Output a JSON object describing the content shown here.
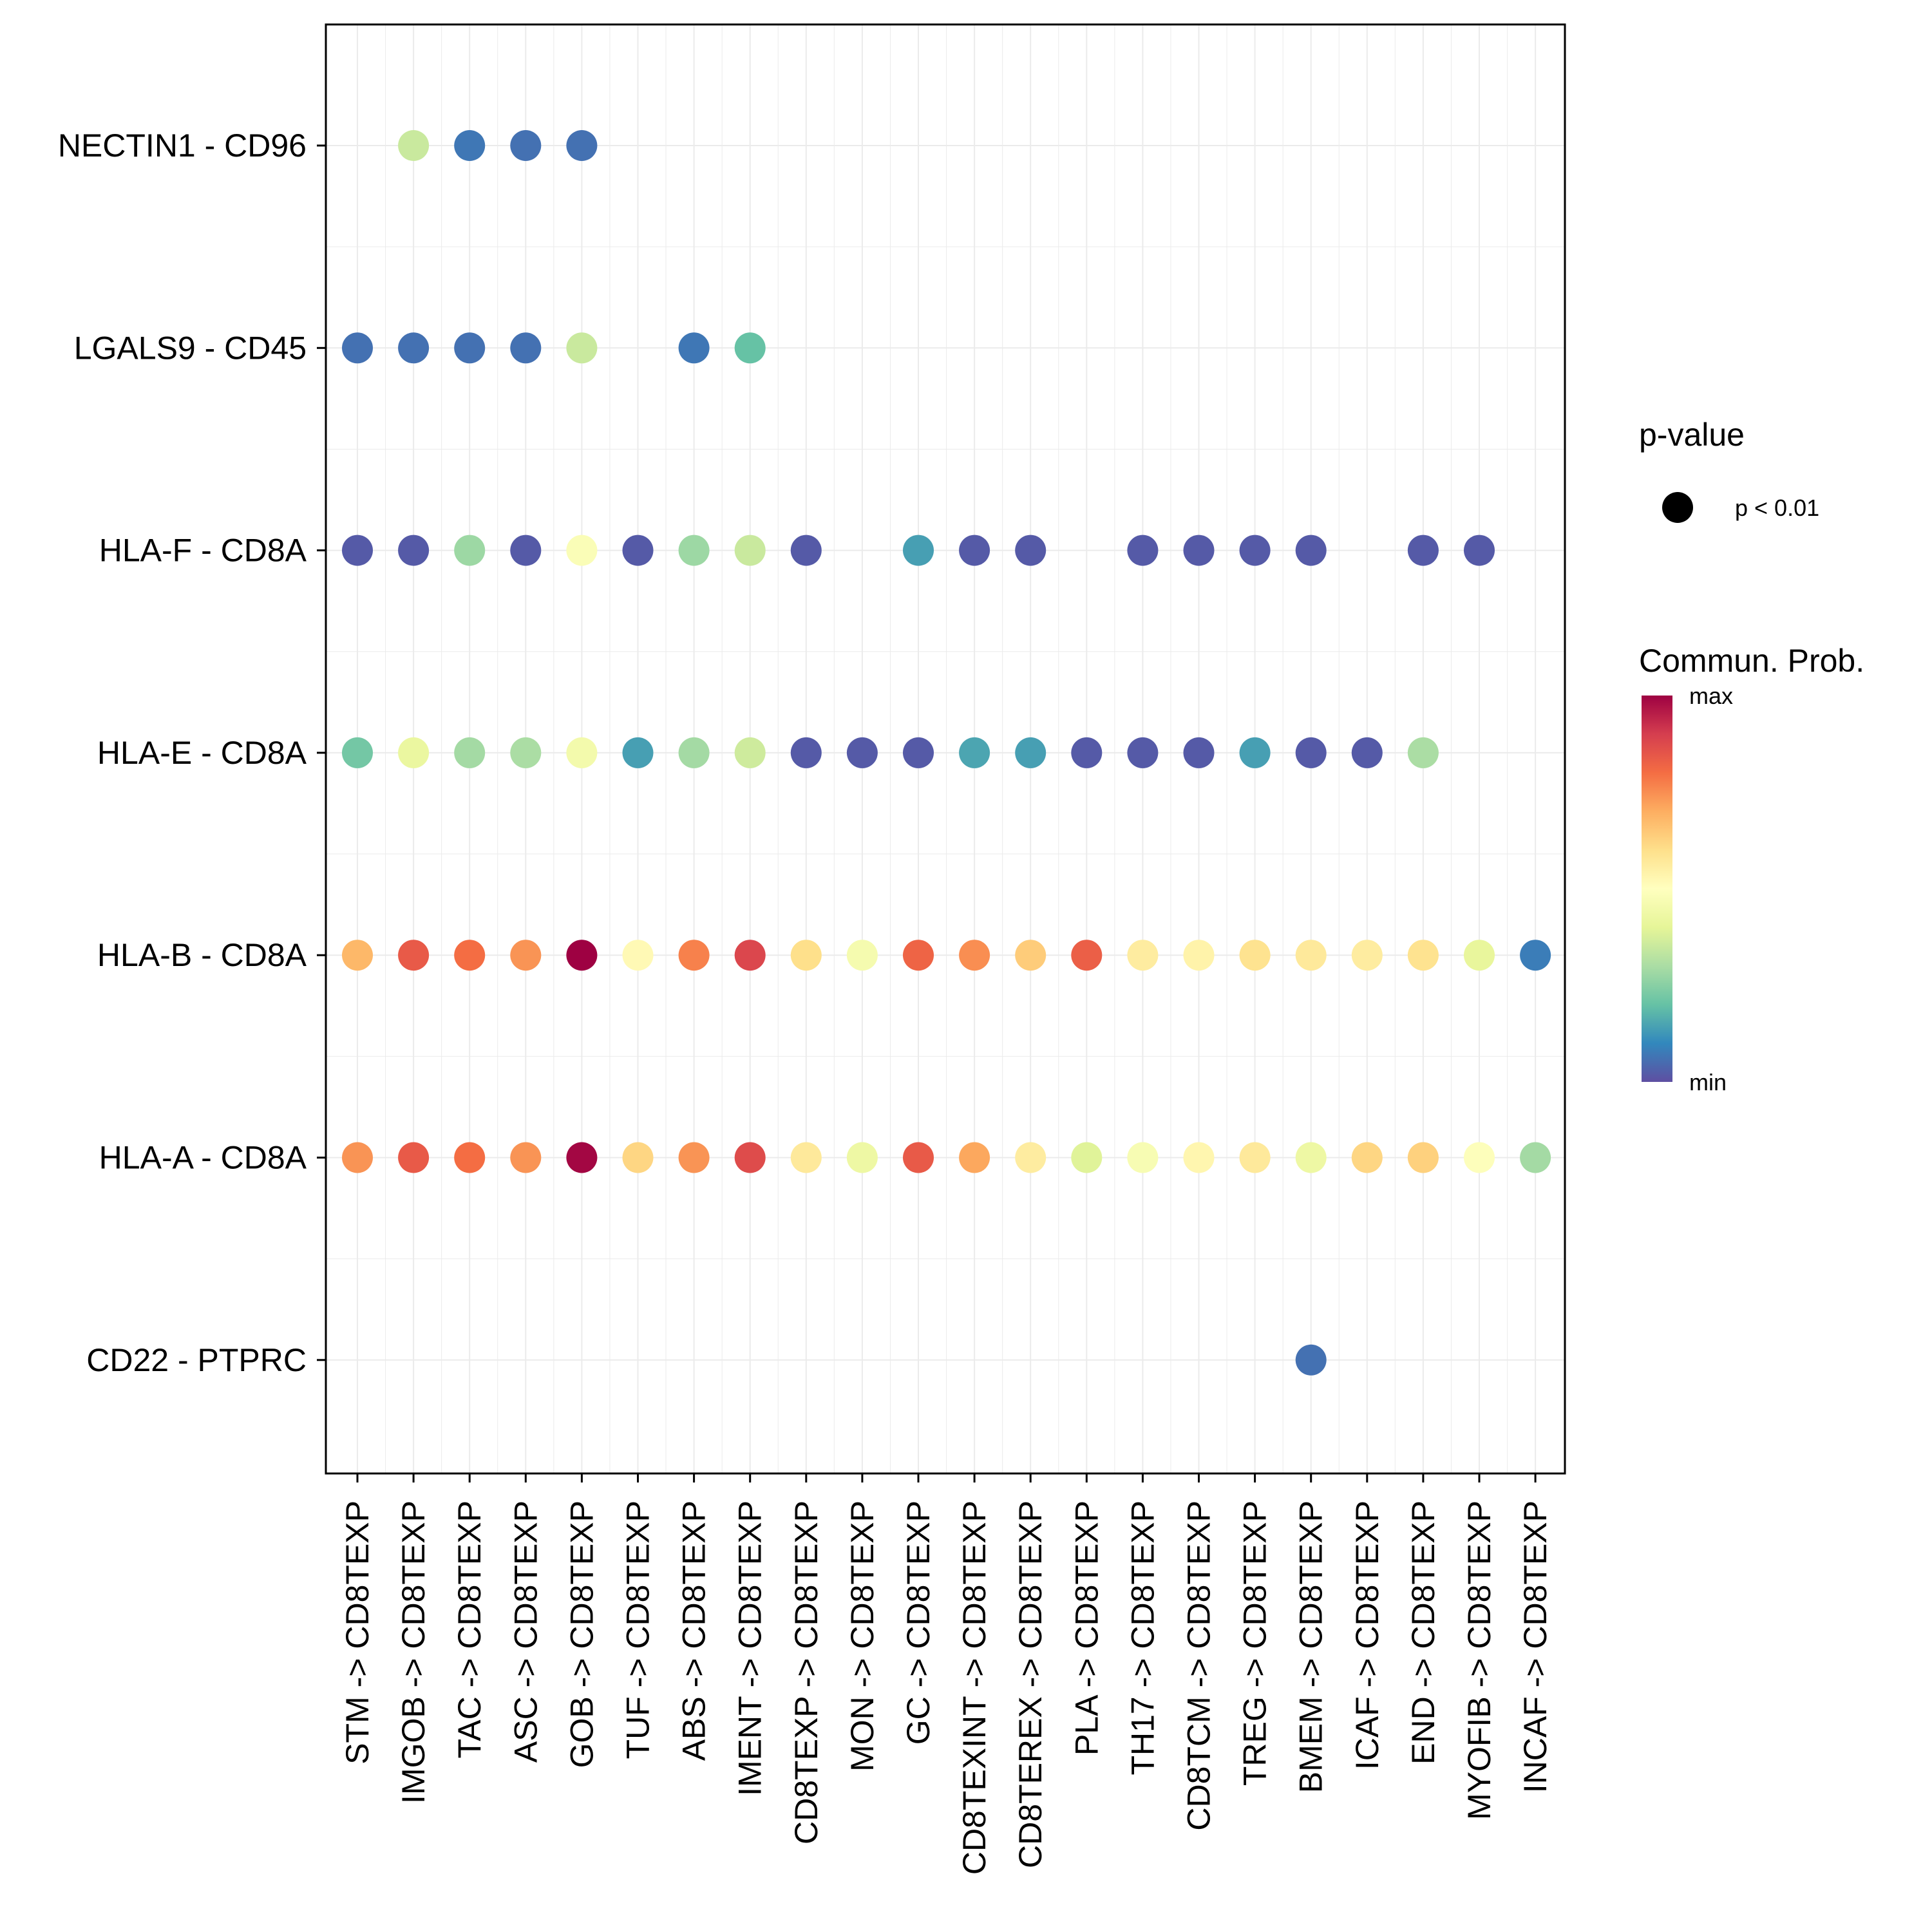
{
  "chart_data": {
    "type": "scatter",
    "subtype": "dot-matrix",
    "title": "",
    "xlabel": "",
    "ylabel": "",
    "categories": [
      "STM -> CD8TEXP",
      "IMGOB -> CD8TEXP",
      "TAC -> CD8TEXP",
      "ASC -> CD8TEXP",
      "GOB -> CD8TEXP",
      "TUF -> CD8TEXP",
      "ABS -> CD8TEXP",
      "IMENT -> CD8TEXP",
      "CD8TEXP -> CD8TEXP",
      "MON -> CD8TEXP",
      "GC -> CD8TEXP",
      "CD8TEXINT -> CD8TEXP",
      "CD8TEREX -> CD8TEXP",
      "PLA -> CD8TEXP",
      "TH17 -> CD8TEXP",
      "CD8TCM -> CD8TEXP",
      "TREG -> CD8TEXP",
      "BMEM -> CD8TEXP",
      "ICAF -> CD8TEXP",
      "END -> CD8TEXP",
      "MYOFIB -> CD8TEXP",
      "INCAF -> CD8TEXP"
    ],
    "rows": [
      "NECTIN1 - CD96",
      "LGALS9 - CD45",
      "HLA-F - CD8A",
      "HLA-E - CD8A",
      "HLA-B - CD8A",
      "HLA-A - CD8A",
      "CD22 - PTPRC"
    ],
    "values_note": "Communication probability normalized 0 (min) to 1 (max); null = no significant interaction",
    "series": [
      {
        "name": "NECTIN1 - CD96",
        "values": [
          null,
          0.35,
          0.07,
          0.06,
          0.06,
          null,
          null,
          null,
          null,
          null,
          null,
          null,
          null,
          null,
          null,
          null,
          null,
          null,
          null,
          null,
          null,
          null
        ]
      },
      {
        "name": "LGALS9 - CD45",
        "values": [
          0.06,
          0.06,
          0.06,
          0.06,
          0.35,
          null,
          0.07,
          0.2,
          null,
          null,
          null,
          null,
          null,
          null,
          null,
          null,
          null,
          null,
          null,
          null,
          null,
          null
        ]
      },
      {
        "name": "HLA-F - CD8A",
        "values": [
          0.02,
          0.02,
          0.28,
          0.02,
          0.48,
          0.02,
          0.28,
          0.35,
          0.02,
          null,
          0.14,
          0.02,
          0.02,
          null,
          0.02,
          0.02,
          0.02,
          0.02,
          null,
          0.02,
          0.02,
          null
        ]
      },
      {
        "name": "HLA-E - CD8A",
        "values": [
          0.22,
          0.42,
          0.29,
          0.3,
          0.45,
          0.14,
          0.29,
          0.36,
          0.02,
          0.02,
          0.02,
          0.15,
          0.14,
          0.02,
          0.02,
          0.02,
          0.14,
          0.02,
          0.02,
          0.3,
          null,
          null
        ]
      },
      {
        "name": "HLA-B - CD8A",
        "values": [
          0.68,
          0.84,
          0.8,
          0.74,
          1.0,
          0.52,
          0.77,
          0.88,
          0.6,
          0.46,
          0.82,
          0.75,
          0.64,
          0.83,
          0.56,
          0.54,
          0.59,
          0.57,
          0.56,
          0.59,
          0.41,
          0.08
        ]
      },
      {
        "name": "HLA-A - CD8A",
        "values": [
          0.74,
          0.84,
          0.8,
          0.74,
          0.99,
          0.62,
          0.74,
          0.87,
          0.57,
          0.43,
          0.84,
          0.71,
          0.56,
          0.39,
          0.47,
          0.53,
          0.57,
          0.43,
          0.62,
          0.63,
          0.49,
          0.29
        ]
      },
      {
        "name": "CD22 - PTPRC",
        "values": [
          null,
          null,
          null,
          null,
          null,
          null,
          null,
          null,
          null,
          null,
          null,
          null,
          null,
          null,
          null,
          null,
          null,
          0.06,
          null,
          null,
          null,
          null
        ]
      }
    ],
    "legend": {
      "pvalue_title": "p-value",
      "pvalue_label": "p < 0.01",
      "color_title": "Commun. Prob.",
      "color_max": "max",
      "color_min": "min",
      "colormap": "Spectral (reversed)",
      "placement": "right"
    },
    "grid": true,
    "colors": {
      "palette": [
        "#5E4FA2",
        "#3288BD",
        "#66C2A5",
        "#ABDDA4",
        "#E6F598",
        "#FFFFBF",
        "#FEE08B",
        "#FDAE61",
        "#F46D43",
        "#D53E4F",
        "#9E0142"
      ],
      "panel_border": "#000000",
      "grid_line": "#EBEBEB",
      "legend_dot": "#000000"
    }
  }
}
